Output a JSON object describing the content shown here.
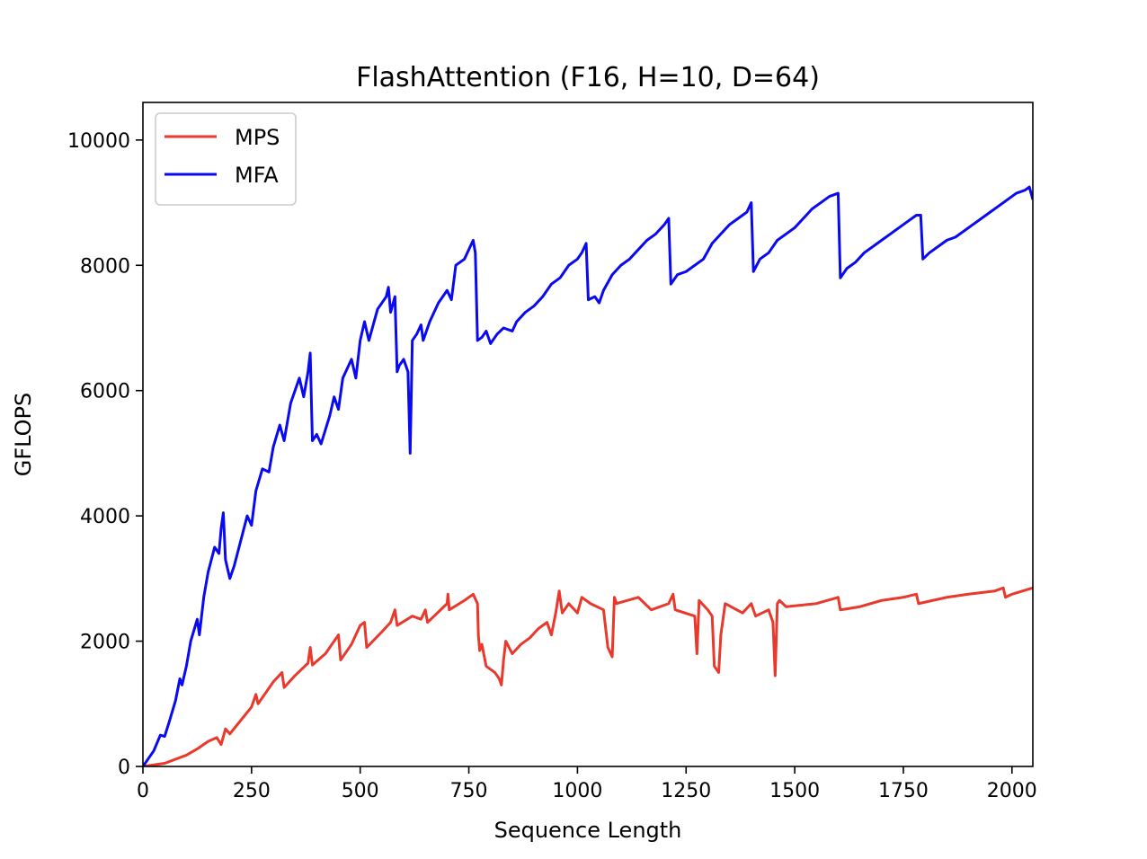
{
  "chart_data": {
    "type": "line",
    "title": "FlashAttention (F16, H=10, D=64)",
    "xlabel": "Sequence Length",
    "ylabel": "GFLOPS",
    "xlim": [
      0,
      2048
    ],
    "ylim": [
      0,
      10600
    ],
    "xticks": [
      0,
      250,
      500,
      750,
      1000,
      1250,
      1500,
      1750,
      2000
    ],
    "yticks": [
      0,
      2000,
      4000,
      6000,
      8000,
      10000
    ],
    "grid": false,
    "legend": "top-left",
    "series": [
      {
        "name": "MPS",
        "color": "#e8392c",
        "points": [
          [
            0,
            0
          ],
          [
            50,
            50
          ],
          [
            100,
            180
          ],
          [
            125,
            280
          ],
          [
            150,
            400
          ],
          [
            170,
            460
          ],
          [
            180,
            350
          ],
          [
            190,
            600
          ],
          [
            200,
            520
          ],
          [
            250,
            950
          ],
          [
            260,
            1150
          ],
          [
            265,
            1000
          ],
          [
            300,
            1350
          ],
          [
            320,
            1500
          ],
          [
            325,
            1260
          ],
          [
            350,
            1450
          ],
          [
            380,
            1650
          ],
          [
            385,
            1900
          ],
          [
            390,
            1620
          ],
          [
            420,
            1800
          ],
          [
            440,
            2000
          ],
          [
            450,
            2100
          ],
          [
            455,
            1700
          ],
          [
            480,
            1950
          ],
          [
            500,
            2250
          ],
          [
            510,
            2300
          ],
          [
            515,
            1900
          ],
          [
            550,
            2150
          ],
          [
            570,
            2300
          ],
          [
            580,
            2500
          ],
          [
            585,
            2250
          ],
          [
            620,
            2400
          ],
          [
            640,
            2350
          ],
          [
            650,
            2500
          ],
          [
            655,
            2300
          ],
          [
            700,
            2600
          ],
          [
            702,
            2750
          ],
          [
            705,
            2500
          ],
          [
            740,
            2650
          ],
          [
            760,
            2750
          ],
          [
            770,
            2600
          ],
          [
            772,
            2100
          ],
          [
            775,
            1850
          ],
          [
            780,
            1950
          ],
          [
            790,
            1600
          ],
          [
            810,
            1500
          ],
          [
            820,
            1400
          ],
          [
            825,
            1300
          ],
          [
            830,
            1700
          ],
          [
            835,
            2000
          ],
          [
            850,
            1800
          ],
          [
            870,
            1950
          ],
          [
            890,
            2050
          ],
          [
            910,
            2200
          ],
          [
            930,
            2300
          ],
          [
            940,
            2100
          ],
          [
            950,
            2450
          ],
          [
            958,
            2800
          ],
          [
            965,
            2450
          ],
          [
            980,
            2600
          ],
          [
            1000,
            2450
          ],
          [
            1010,
            2700
          ],
          [
            1030,
            2600
          ],
          [
            1060,
            2500
          ],
          [
            1070,
            1900
          ],
          [
            1080,
            1750
          ],
          [
            1085,
            2700
          ],
          [
            1090,
            2600
          ],
          [
            1140,
            2700
          ],
          [
            1170,
            2500
          ],
          [
            1210,
            2600
          ],
          [
            1220,
            2750
          ],
          [
            1225,
            2500
          ],
          [
            1270,
            2400
          ],
          [
            1275,
            1800
          ],
          [
            1280,
            2650
          ],
          [
            1300,
            2500
          ],
          [
            1310,
            2400
          ],
          [
            1315,
            1600
          ],
          [
            1325,
            1500
          ],
          [
            1330,
            2100
          ],
          [
            1340,
            2600
          ],
          [
            1380,
            2450
          ],
          [
            1400,
            2600
          ],
          [
            1410,
            2400
          ],
          [
            1440,
            2500
          ],
          [
            1450,
            2300
          ],
          [
            1455,
            1450
          ],
          [
            1460,
            2600
          ],
          [
            1465,
            2650
          ],
          [
            1480,
            2550
          ],
          [
            1550,
            2600
          ],
          [
            1600,
            2700
          ],
          [
            1605,
            2500
          ],
          [
            1650,
            2550
          ],
          [
            1700,
            2650
          ],
          [
            1750,
            2700
          ],
          [
            1780,
            2750
          ],
          [
            1785,
            2600
          ],
          [
            1850,
            2700
          ],
          [
            1900,
            2750
          ],
          [
            1960,
            2800
          ],
          [
            1980,
            2850
          ],
          [
            1985,
            2700
          ],
          [
            2000,
            2750
          ],
          [
            2048,
            2850
          ]
        ]
      },
      {
        "name": "MFA",
        "color": "#0a0af0",
        "points": [
          [
            0,
            0
          ],
          [
            25,
            250
          ],
          [
            40,
            500
          ],
          [
            50,
            480
          ],
          [
            60,
            700
          ],
          [
            75,
            1050
          ],
          [
            85,
            1400
          ],
          [
            90,
            1300
          ],
          [
            100,
            1600
          ],
          [
            110,
            2000
          ],
          [
            125,
            2350
          ],
          [
            130,
            2100
          ],
          [
            140,
            2700
          ],
          [
            150,
            3100
          ],
          [
            165,
            3500
          ],
          [
            175,
            3400
          ],
          [
            180,
            3800
          ],
          [
            185,
            4050
          ],
          [
            190,
            3300
          ],
          [
            200,
            3000
          ],
          [
            210,
            3200
          ],
          [
            225,
            3600
          ],
          [
            240,
            4000
          ],
          [
            250,
            3850
          ],
          [
            260,
            4400
          ],
          [
            275,
            4750
          ],
          [
            290,
            4700
          ],
          [
            300,
            5100
          ],
          [
            315,
            5450
          ],
          [
            325,
            5200
          ],
          [
            340,
            5800
          ],
          [
            360,
            6200
          ],
          [
            370,
            5900
          ],
          [
            380,
            6300
          ],
          [
            385,
            6600
          ],
          [
            390,
            5200
          ],
          [
            400,
            5300
          ],
          [
            410,
            5150
          ],
          [
            430,
            5600
          ],
          [
            440,
            5900
          ],
          [
            450,
            5700
          ],
          [
            460,
            6200
          ],
          [
            480,
            6500
          ],
          [
            490,
            6200
          ],
          [
            500,
            6800
          ],
          [
            510,
            7100
          ],
          [
            520,
            6800
          ],
          [
            540,
            7300
          ],
          [
            560,
            7500
          ],
          [
            565,
            7650
          ],
          [
            570,
            7250
          ],
          [
            580,
            7500
          ],
          [
            585,
            6300
          ],
          [
            590,
            6400
          ],
          [
            600,
            6500
          ],
          [
            610,
            6300
          ],
          [
            615,
            5000
          ],
          [
            620,
            6800
          ],
          [
            630,
            6900
          ],
          [
            640,
            7050
          ],
          [
            645,
            6800
          ],
          [
            660,
            7100
          ],
          [
            680,
            7400
          ],
          [
            700,
            7600
          ],
          [
            710,
            7450
          ],
          [
            720,
            8000
          ],
          [
            740,
            8100
          ],
          [
            760,
            8400
          ],
          [
            765,
            8200
          ],
          [
            770,
            6800
          ],
          [
            780,
            6850
          ],
          [
            790,
            6950
          ],
          [
            800,
            6750
          ],
          [
            815,
            6900
          ],
          [
            830,
            7000
          ],
          [
            850,
            6950
          ],
          [
            860,
            7100
          ],
          [
            880,
            7250
          ],
          [
            900,
            7350
          ],
          [
            920,
            7500
          ],
          [
            940,
            7700
          ],
          [
            950,
            7750
          ],
          [
            960,
            7800
          ],
          [
            980,
            8000
          ],
          [
            1000,
            8100
          ],
          [
            1010,
            8200
          ],
          [
            1020,
            8350
          ],
          [
            1025,
            7450
          ],
          [
            1040,
            7500
          ],
          [
            1050,
            7400
          ],
          [
            1060,
            7600
          ],
          [
            1080,
            7850
          ],
          [
            1100,
            8000
          ],
          [
            1120,
            8100
          ],
          [
            1140,
            8250
          ],
          [
            1160,
            8400
          ],
          [
            1180,
            8500
          ],
          [
            1200,
            8650
          ],
          [
            1210,
            8750
          ],
          [
            1215,
            7700
          ],
          [
            1230,
            7850
          ],
          [
            1250,
            7900
          ],
          [
            1270,
            8000
          ],
          [
            1290,
            8100
          ],
          [
            1310,
            8350
          ],
          [
            1330,
            8500
          ],
          [
            1350,
            8650
          ],
          [
            1370,
            8750
          ],
          [
            1390,
            8850
          ],
          [
            1400,
            9000
          ],
          [
            1405,
            7900
          ],
          [
            1420,
            8100
          ],
          [
            1440,
            8200
          ],
          [
            1460,
            8400
          ],
          [
            1480,
            8500
          ],
          [
            1500,
            8600
          ],
          [
            1520,
            8750
          ],
          [
            1540,
            8900
          ],
          [
            1560,
            9000
          ],
          [
            1580,
            9100
          ],
          [
            1600,
            9150
          ],
          [
            1605,
            7800
          ],
          [
            1620,
            7950
          ],
          [
            1640,
            8050
          ],
          [
            1660,
            8200
          ],
          [
            1680,
            8300
          ],
          [
            1700,
            8400
          ],
          [
            1720,
            8500
          ],
          [
            1740,
            8600
          ],
          [
            1760,
            8700
          ],
          [
            1780,
            8800
          ],
          [
            1790,
            8800
          ],
          [
            1795,
            8100
          ],
          [
            1810,
            8200
          ],
          [
            1830,
            8300
          ],
          [
            1850,
            8400
          ],
          [
            1870,
            8450
          ],
          [
            1890,
            8550
          ],
          [
            1910,
            8650
          ],
          [
            1930,
            8750
          ],
          [
            1950,
            8850
          ],
          [
            1970,
            8950
          ],
          [
            1990,
            9050
          ],
          [
            2010,
            9150
          ],
          [
            2030,
            9200
          ],
          [
            2040,
            9250
          ],
          [
            2048,
            9050
          ]
        ]
      }
    ]
  }
}
